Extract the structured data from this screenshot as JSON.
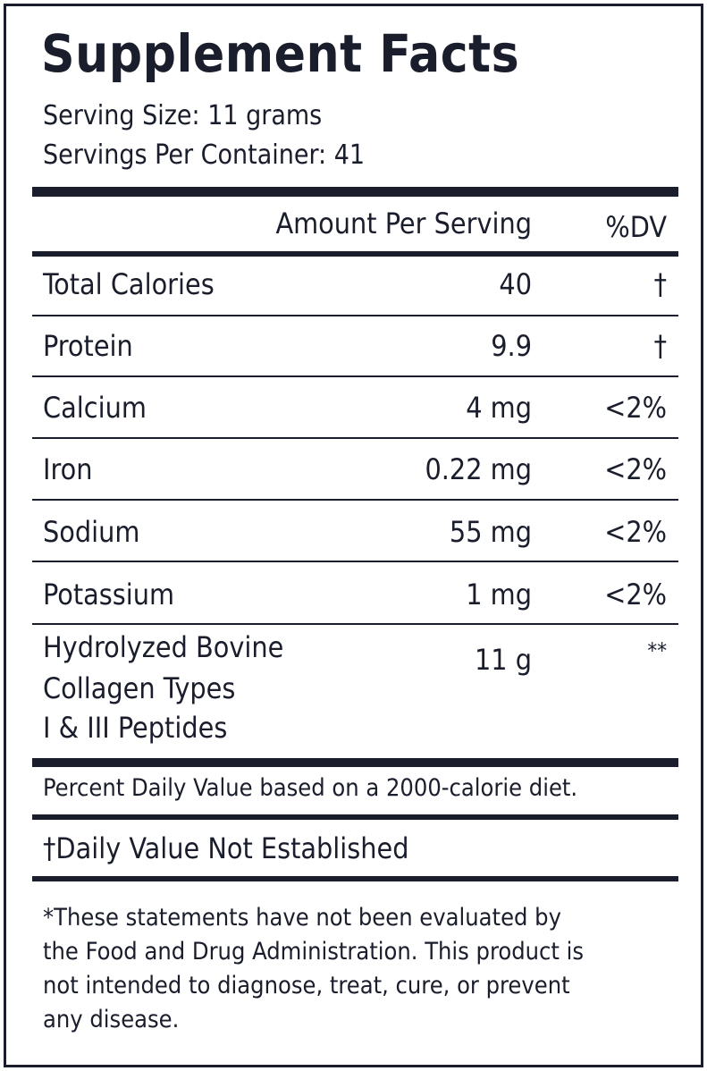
{
  "title": "Supplement Facts",
  "serving_size": "Serving Size: 11 grams",
  "servings_per_container": "Servings Per Container: 41",
  "header": {
    "amount": "Amount Per Serving",
    "dv": "%DV"
  },
  "rows": [
    {
      "name": "Total Calories",
      "amount": "40",
      "dv": "†"
    },
    {
      "name": "Protein",
      "amount": "9.9",
      "dv": "†"
    },
    {
      "name": "Calcium",
      "amount": "4 mg",
      "dv": "<2%"
    },
    {
      "name": "Iron",
      "amount": "0.22 mg",
      "dv": "<2%"
    },
    {
      "name": "Sodium",
      "amount": "55 mg",
      "dv": "<2%"
    },
    {
      "name": "Potassium",
      "amount": "1 mg",
      "dv": "<2%"
    }
  ],
  "collagen": {
    "name_lines": [
      "Hydrolyzed Bovine",
      "Collagen Types",
      "I & III Peptides"
    ],
    "amount": "11 g",
    "dv": "**"
  },
  "daily_value_note": "Percent Daily Value based on a 2000-calorie diet.",
  "not_established_note": "†Daily Value Not Established",
  "disclaimer_lines": [
    "*These statements have not been evaluated by",
    "the Food and Drug Administration. This product is",
    "not intended to diagnose, treat, cure, or prevent",
    "any disease."
  ]
}
